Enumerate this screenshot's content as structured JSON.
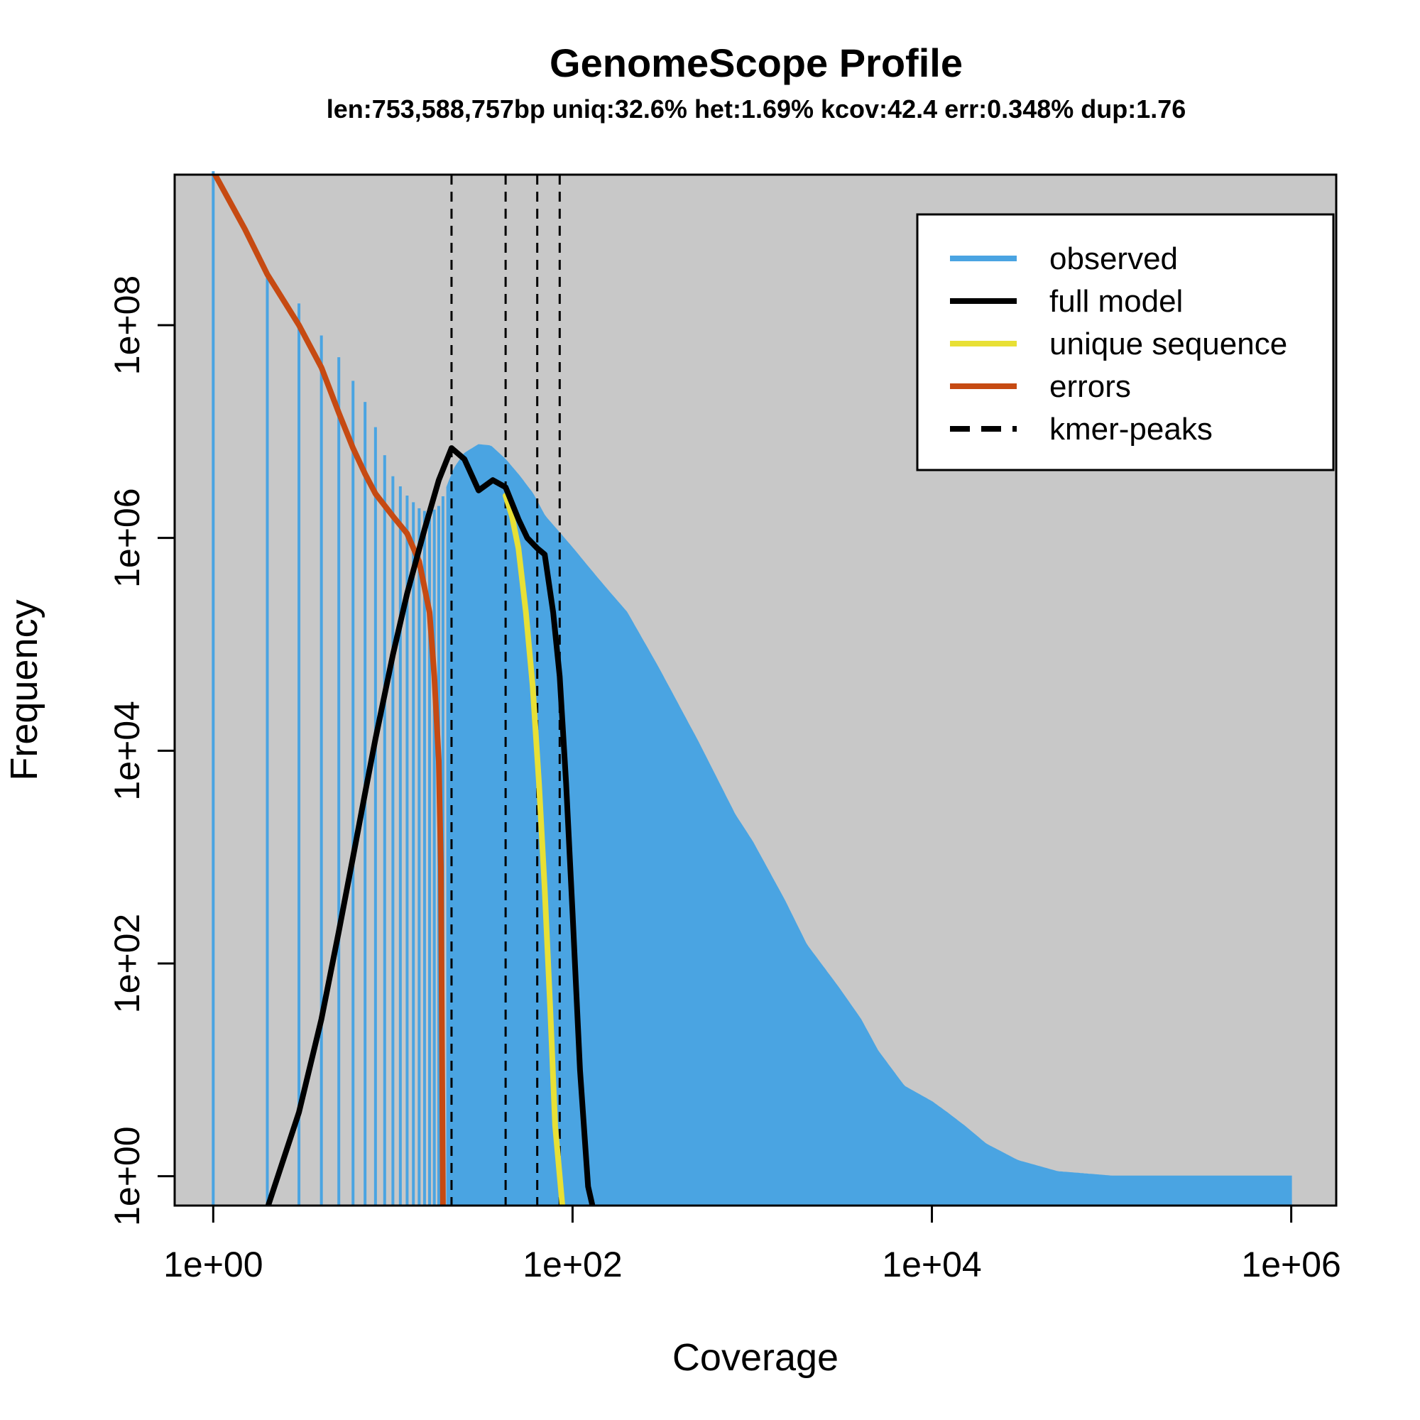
{
  "chart_data": {
    "type": "line",
    "title": "GenomeScope Profile",
    "subtitle": "len:753,588,757bp uniq:32.6% het:1.69% kcov:42.4 err:0.348% dup:1.76",
    "xlabel": "Coverage",
    "ylabel": "Frequency",
    "x_scale": "log",
    "y_scale": "log",
    "xlim": [
      0.61,
      1780000.0
    ],
    "ylim": [
      0.53,
      2600000000.0
    ],
    "x_ticks": [
      1,
      100,
      10000,
      1000000
    ],
    "x_tick_labels": [
      "1e+00",
      "1e+02",
      "1e+04",
      "1e+06"
    ],
    "y_ticks": [
      1,
      100,
      10000,
      1000000,
      100000000
    ],
    "y_tick_labels": [
      "1e+00",
      "1e+02",
      "1e+04",
      "1e+06",
      "1e+08"
    ],
    "background": "#c8c8c8",
    "legend_position": "top-right",
    "legend": [
      {
        "label": "observed",
        "color": "#4aa4e2",
        "style": "solid"
      },
      {
        "label": "full model",
        "color": "#000000",
        "style": "solid"
      },
      {
        "label": "unique sequence",
        "color": "#e8e035",
        "style": "solid"
      },
      {
        "label": "errors",
        "color": "#c64a12",
        "style": "solid"
      },
      {
        "label": "kmer-peaks",
        "color": "#000000",
        "style": "dashed"
      }
    ],
    "kmer_peaks": [
      21.2,
      42.4,
      63.6,
      84.8
    ],
    "series": [
      {
        "name": "observed",
        "color": "#4aa4e2",
        "x": [
          1,
          2,
          3,
          4,
          5,
          6,
          7,
          8,
          9,
          10,
          12,
          14,
          16,
          18,
          20,
          22,
          25,
          30,
          35,
          42,
          50,
          60,
          70,
          85,
          100,
          120,
          150,
          200,
          300,
          500,
          800,
          1000,
          1500,
          2000,
          3000,
          4000,
          5000,
          7000,
          10000,
          12000,
          15000,
          20000,
          30000,
          50000,
          100000,
          200000,
          300000,
          500000,
          1000000
        ],
        "y": [
          2800000000.0,
          300000000.0,
          160000000.0,
          80000000.0,
          50000000.0,
          30000000.0,
          19000000.0,
          11000000.0,
          6000000.0,
          3800000.0,
          2500000.0,
          1900000.0,
          1700000.0,
          2000000.0,
          3000000.0,
          4500000.0,
          6200000.0,
          7500000.0,
          7300000.0,
          5500000.0,
          3900000.0,
          2600000.0,
          1600000.0,
          1100000.0,
          800000.0,
          550000.0,
          350000.0,
          200000.0,
          60000.0,
          12000.0,
          2500.0,
          1400.0,
          400,
          150,
          60,
          30,
          15,
          7,
          5,
          4,
          3,
          2,
          1.4,
          1.1,
          1,
          1,
          1,
          1,
          1
        ]
      },
      {
        "name": "full model",
        "color": "#000000",
        "x": [
          2,
          3,
          4,
          5,
          6,
          7,
          8,
          10,
          12,
          15,
          18,
          21.2,
          25,
          30,
          36,
          42.4,
          50,
          56,
          63.6,
          70,
          78,
          84.8,
          92,
          100,
          110,
          122,
          130
        ],
        "y": [
          0.5,
          4,
          30,
          200,
          1000.0,
          4000.0,
          13000.0,
          80000.0,
          300000.0,
          1200000.0,
          3500000.0,
          7000000.0,
          5500000.0,
          2800000.0,
          3500000.0,
          3000000.0,
          1500000.0,
          1000000.0,
          800000.0,
          700000.0,
          200000.0,
          50000.0,
          5000.0,
          300,
          10,
          0.8,
          0.5
        ]
      },
      {
        "name": "unique sequence",
        "color": "#e8e035",
        "x": [
          42.4,
          46,
          50,
          55,
          60,
          65,
          70,
          75,
          80,
          88
        ],
        "y": [
          2500000.0,
          1600000.0,
          800000.0,
          200000.0,
          40000.0,
          5000.0,
          500,
          40,
          3,
          0.5
        ]
      },
      {
        "name": "errors",
        "color": "#c64a12",
        "x": [
          1,
          1.5,
          2,
          3,
          4,
          5,
          6,
          7,
          8,
          10,
          12,
          14,
          16,
          17,
          18,
          18.5,
          19
        ],
        "y": [
          2800000000.0,
          800000000.0,
          300000000.0,
          100000000.0,
          40000000.0,
          15000000.0,
          7000000.0,
          4000000.0,
          2600000.0,
          1600000.0,
          1100000.0,
          600000.0,
          200000.0,
          50000.0,
          8000.0,
          800,
          0.5
        ]
      }
    ]
  }
}
